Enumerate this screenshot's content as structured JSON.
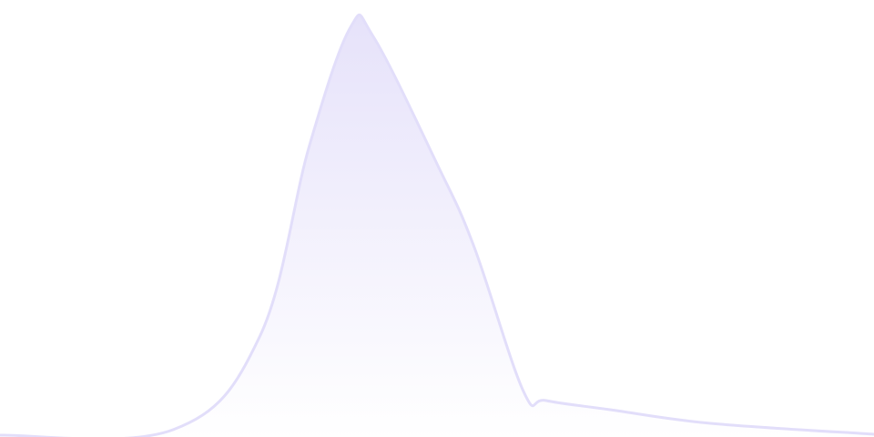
{
  "chart_data": {
    "type": "area",
    "title": "",
    "xlabel": "",
    "ylabel": "",
    "grid": false,
    "legend": "none",
    "xlim": [
      0,
      100
    ],
    "ylim": [
      0,
      480
    ],
    "x": [
      0,
      19.8,
      29.7,
      35.4,
      40.1,
      42.7,
      50,
      54.2,
      59.9,
      62.5,
      69.8,
      81.3,
      100
    ],
    "values": [
      2,
      8,
      110,
      320,
      450,
      440,
      300,
      210,
      50,
      40,
      30,
      15,
      3
    ],
    "colors": {
      "line": "#e2defa",
      "fill_top": "#e6e2fa",
      "fill_bottom": "#ffffff"
    }
  }
}
